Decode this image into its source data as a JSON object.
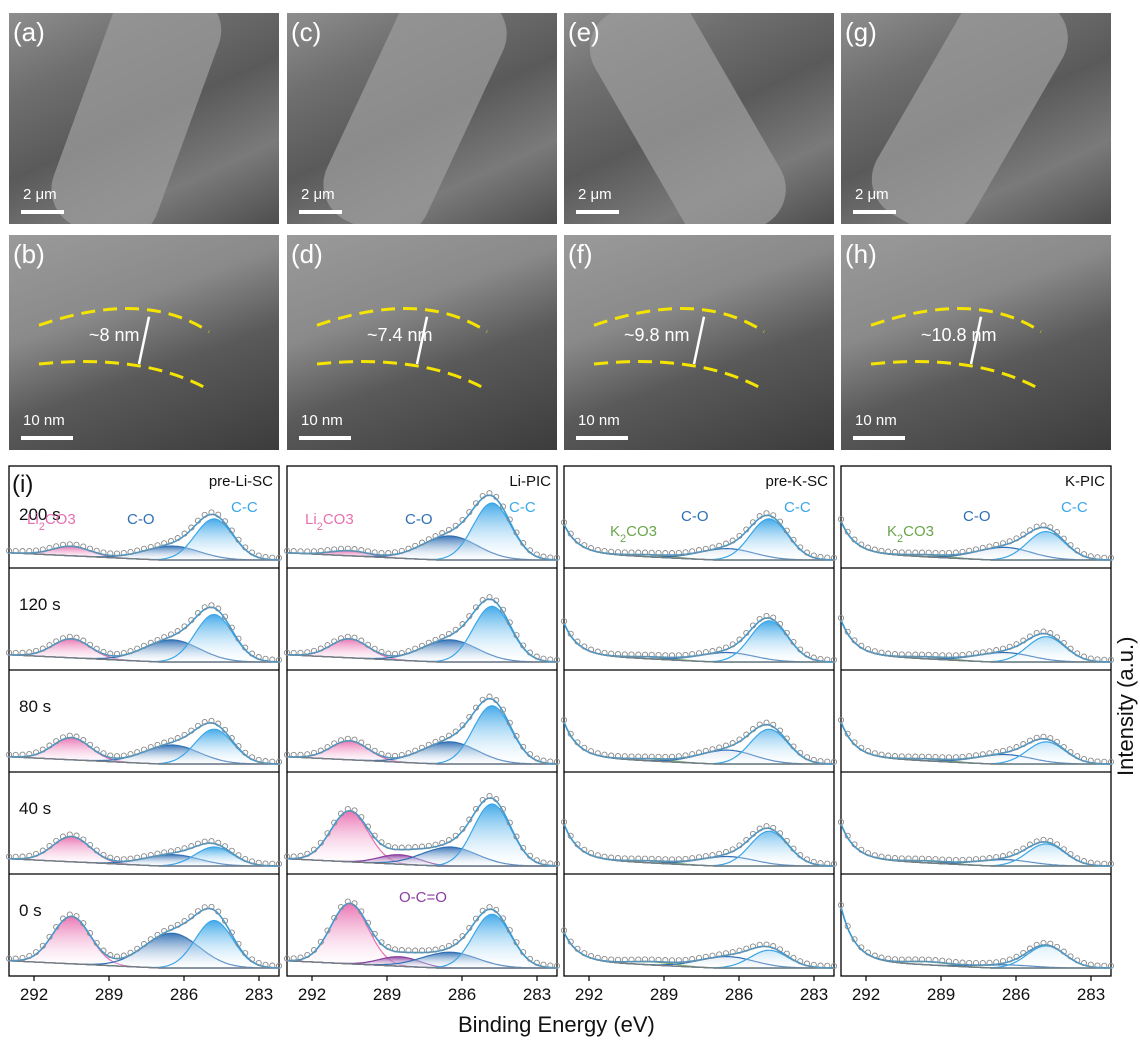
{
  "micrographs": [
    {
      "label": "(a)",
      "kind": "sem",
      "scale": "2 μm"
    },
    {
      "label": "(c)",
      "kind": "sem",
      "scale": "2 μm"
    },
    {
      "label": "(e)",
      "kind": "sem",
      "scale": "2 μm"
    },
    {
      "label": "(g)",
      "kind": "sem",
      "scale": "2 μm"
    },
    {
      "label": "(b)",
      "kind": "tem",
      "scale": "10 nm",
      "thickness": "~8 nm"
    },
    {
      "label": "(d)",
      "kind": "tem",
      "scale": "10 nm",
      "thickness": "~7.4 nm"
    },
    {
      "label": "(f)",
      "kind": "tem",
      "scale": "10 nm",
      "thickness": "~9.8 nm"
    },
    {
      "label": "(h)",
      "kind": "tem",
      "scale": "10 nm",
      "thickness": "~10.8 nm"
    }
  ],
  "colors": {
    "li2co3": "#e86fb0",
    "co": "#2f6fb5",
    "cc": "#3aa6e8",
    "k2co3": "#6aa64a",
    "oco": "#8a3e9e",
    "fit": "#3b9bd6",
    "background": "#7a7a7a",
    "raw": "#8a8a8a"
  },
  "chart_data": {
    "type": "line",
    "panel_label": "(i)",
    "xlabel": "Binding Energy (eV)",
    "ylabel": "Intensity (a.u.)",
    "xlim": [
      293,
      282.2
    ],
    "xticks": [
      292,
      289,
      286,
      283
    ],
    "times": [
      "200 s",
      "120 s",
      "80 s",
      "40 s",
      "0 s"
    ],
    "columns": [
      {
        "title": "pre-Li-SC",
        "peaks": {
          "200 s": {
            "li": 0.15,
            "co": 0.22,
            "cc": 0.65
          },
          "120 s": {
            "li": 0.3,
            "co": 0.35,
            "cc": 0.75
          },
          "80 s": {
            "li": 0.35,
            "co": 0.3,
            "cc": 0.55
          },
          "40 s": {
            "li": 0.4,
            "co": 0.18,
            "cc": 0.3
          },
          "0 s": {
            "li": 0.75,
            "co": 0.55,
            "cc": 0.75
          }
        }
      },
      {
        "title": "Li-PIC",
        "peaks": {
          "200 s": {
            "li": 0.08,
            "co": 0.38,
            "cc": 0.9
          },
          "120 s": {
            "li": 0.3,
            "co": 0.35,
            "cc": 0.88
          },
          "80 s": {
            "li": 0.3,
            "co": 0.35,
            "cc": 0.92
          },
          "40 s": {
            "li": 0.8,
            "oco": 0.15,
            "co": 0.3,
            "cc": 0.98
          },
          "0 s": {
            "li": 0.95,
            "oco": 0.15,
            "co": 0.25,
            "cc": 0.85
          }
        }
      },
      {
        "title": "pre-K-SC",
        "peaks": {
          "200 s": {
            "k": 0.03,
            "co": 0.18,
            "cc": 0.65,
            "tail": 0.45
          },
          "120 s": {
            "k": 0.03,
            "co": 0.15,
            "cc": 0.65,
            "tail": 0.5
          },
          "80 s": {
            "k": 0.03,
            "co": 0.22,
            "cc": 0.55,
            "tail": 0.55
          },
          "40 s": {
            "k": 0.03,
            "co": 0.15,
            "cc": 0.55,
            "tail": 0.55
          },
          "0 s": {
            "k": 0.05,
            "co": 0.18,
            "cc": 0.28,
            "tail": 0.45
          }
        }
      },
      {
        "title": "K-PIC",
        "peaks": {
          "200 s": {
            "k": 0.03,
            "co": 0.2,
            "cc": 0.45,
            "tail": 0.5
          },
          "120 s": {
            "k": 0.03,
            "co": 0.15,
            "cc": 0.4,
            "tail": 0.55
          },
          "80 s": {
            "k": 0.03,
            "co": 0.15,
            "cc": 0.35,
            "tail": 0.55
          },
          "40 s": {
            "k": 0.03,
            "co": 0.1,
            "cc": 0.35,
            "tail": 0.55
          },
          "0 s": {
            "k": 0.05,
            "co": 0.05,
            "cc": 0.35,
            "tail": 0.85
          }
        }
      }
    ],
    "annotations": {
      "li2co3": "Li2CO3",
      "k2co3": "K2CO3",
      "co": "C-O",
      "cc": "C-C",
      "oco": "O-C=O"
    },
    "peak_centers_eV": {
      "li": 290.5,
      "k": 289.5,
      "oco": 288.5,
      "co": 286.5,
      "cc": 284.8
    }
  }
}
